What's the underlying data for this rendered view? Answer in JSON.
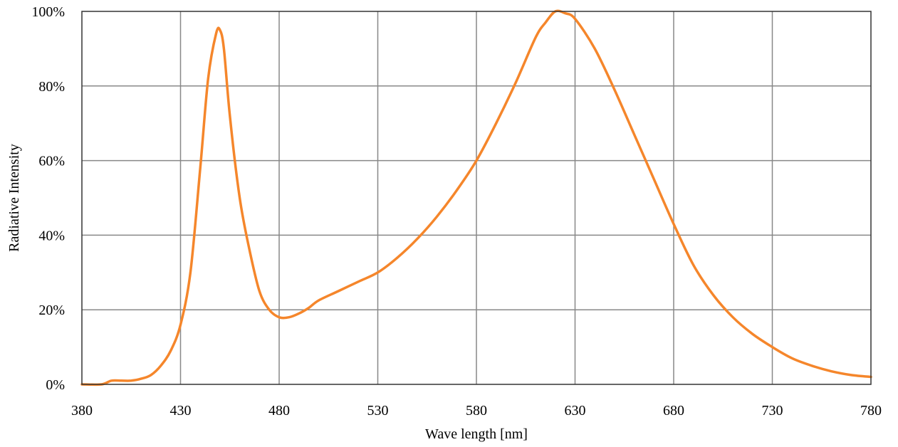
{
  "chart_data": {
    "type": "line",
    "title": "",
    "xlabel": "Wave length [nm]",
    "ylabel": "Radiative Intensity",
    "xlim": [
      380,
      780
    ],
    "ylim": [
      0,
      100
    ],
    "x_ticks": [
      380,
      430,
      480,
      530,
      580,
      630,
      680,
      730,
      780
    ],
    "x_tick_labels": [
      "380",
      "430",
      "480",
      "530",
      "580",
      "630",
      "680",
      "730",
      "780"
    ],
    "y_ticks": [
      0,
      20,
      40,
      60,
      80,
      100
    ],
    "y_tick_labels": [
      "0%",
      "20%",
      "40%",
      "60%",
      "80%",
      "100%"
    ],
    "grid": true,
    "legend": "none",
    "colors": {
      "line": "#f5862b",
      "grid": "#888888",
      "frame": "#333333"
    },
    "series": [
      {
        "x": [
          380,
          390,
          395,
          400,
          405,
          410,
          415,
          420,
          425,
          430,
          435,
          440,
          444,
          448,
          450,
          452,
          455,
          460,
          465,
          470,
          475,
          480,
          485,
          490,
          495,
          500,
          510,
          520,
          530,
          540,
          550,
          560,
          570,
          580,
          590,
          600,
          610,
          615,
          620,
          625,
          630,
          640,
          650,
          660,
          670,
          680,
          690,
          700,
          710,
          720,
          730,
          740,
          750,
          760,
          770,
          780
        ],
        "y": [
          0,
          0,
          1,
          1,
          1,
          1.5,
          2.5,
          5,
          9,
          16,
          30,
          58,
          82,
          94,
          95,
          90,
          72,
          50,
          36,
          25,
          20,
          18,
          18,
          19,
          20.5,
          22.5,
          25,
          27.5,
          30,
          34,
          39,
          45,
          52,
          60,
          70,
          81,
          93,
          97,
          100,
          99.5,
          98,
          90,
          79,
          67,
          55,
          43,
          32,
          24,
          18,
          13.5,
          10,
          7,
          5,
          3.5,
          2.5,
          2
        ]
      }
    ]
  }
}
